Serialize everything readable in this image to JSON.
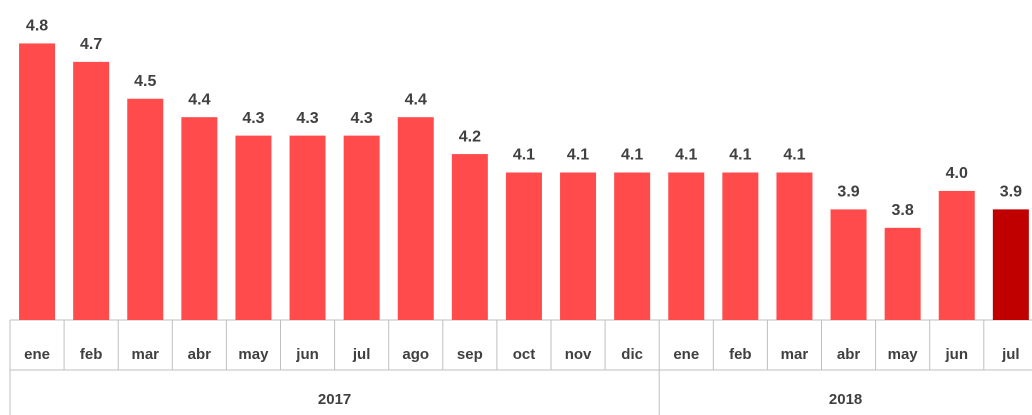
{
  "chart_data": {
    "type": "bar",
    "groups": [
      {
        "name": "2017",
        "categories": [
          "ene",
          "feb",
          "mar",
          "abr",
          "may",
          "jun",
          "jul",
          "ago",
          "sep",
          "oct",
          "nov",
          "dic"
        ]
      },
      {
        "name": "2018",
        "categories": [
          "ene",
          "feb",
          "mar",
          "abr",
          "may",
          "jun",
          "jul"
        ]
      }
    ],
    "values": [
      4.8,
      4.7,
      4.5,
      4.4,
      4.3,
      4.3,
      4.3,
      4.4,
      4.2,
      4.1,
      4.1,
      4.1,
      4.1,
      4.1,
      4.1,
      3.9,
      3.8,
      4.0,
      3.9
    ],
    "value_labels": [
      "4.8",
      "4.7",
      "4.5",
      "4.4",
      "4.3",
      "4.3",
      "4.3",
      "4.4",
      "4.2",
      "4.1",
      "4.1",
      "4.1",
      "4.1",
      "4.1",
      "4.1",
      "3.9",
      "3.8",
      "4.0",
      "3.9"
    ],
    "colors": [
      "#ff4b4b",
      "#ff4b4b",
      "#ff4b4b",
      "#ff4b4b",
      "#ff4b4b",
      "#ff4b4b",
      "#ff4b4b",
      "#ff4b4b",
      "#ff4b4b",
      "#ff4b4b",
      "#ff4b4b",
      "#ff4b4b",
      "#ff4b4b",
      "#ff4b4b",
      "#ff4b4b",
      "#ff4b4b",
      "#ff4b4b",
      "#ff4b4b",
      "#c00000"
    ],
    "ylim": [
      3.3,
      4.9
    ]
  }
}
